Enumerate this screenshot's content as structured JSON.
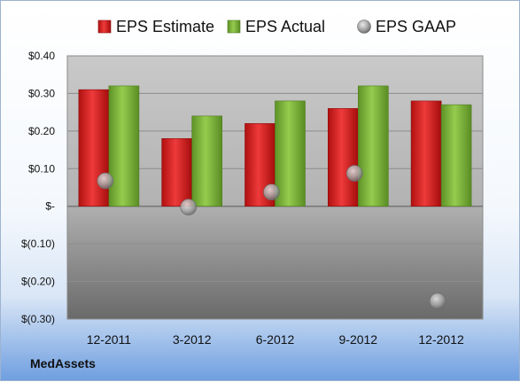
{
  "company": "MedAssets",
  "chart_data": {
    "type": "bar",
    "categories": [
      "12-2011",
      "3-2012",
      "6-2012",
      "9-2012",
      "12-2012"
    ],
    "series": [
      {
        "name": "EPS Estimate",
        "type": "bar",
        "color": "#d81e1e",
        "values": [
          0.31,
          0.18,
          0.22,
          0.26,
          0.28
        ]
      },
      {
        "name": "EPS Actual",
        "type": "bar",
        "color": "#7fb83a",
        "values": [
          0.32,
          0.24,
          0.28,
          0.32,
          0.27
        ]
      },
      {
        "name": "EPS GAAP",
        "type": "marker",
        "color": "#9a9a9a",
        "values": [
          0.07,
          0.0,
          0.04,
          0.09,
          -0.25
        ]
      }
    ],
    "ylim": [
      -0.3,
      0.4
    ],
    "yticks": [
      0.4,
      0.3,
      0.2,
      0.1,
      0.0,
      -0.1,
      -0.2,
      -0.3
    ],
    "ytick_labels": [
      "$0.40",
      "$0.30",
      "$0.20",
      "$0.10",
      "$-",
      "$(0.10)",
      "$(0.20)",
      "$(0.30)"
    ],
    "legend_position": "top",
    "grid": true
  }
}
